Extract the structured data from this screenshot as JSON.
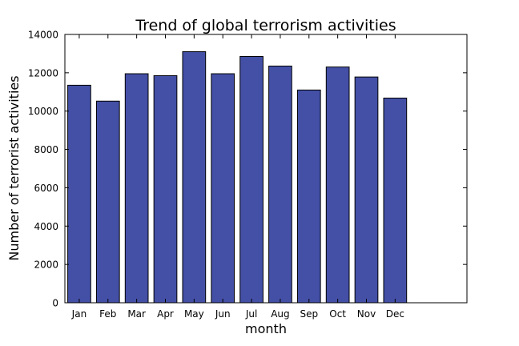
{
  "chart_data": {
    "type": "bar",
    "title": "Trend of global terrorism activities",
    "xlabel": "month",
    "ylabel": "Number of terrorist activities",
    "categories": [
      "Jan",
      "Feb",
      "Mar",
      "Apr",
      "May",
      "Jun",
      "Jul",
      "Aug",
      "Sep",
      "Oct",
      "Nov",
      "Dec"
    ],
    "values": [
      11350,
      10520,
      11950,
      11850,
      13100,
      11950,
      12850,
      12350,
      11100,
      12300,
      11780,
      10680
    ],
    "ylim": [
      0,
      14000
    ],
    "yticks": [
      0,
      2000,
      4000,
      6000,
      8000,
      10000,
      12000,
      14000
    ],
    "grid": false,
    "colors": {
      "bar_fill": "#4450a6",
      "bar_edge": "#000000"
    }
  }
}
